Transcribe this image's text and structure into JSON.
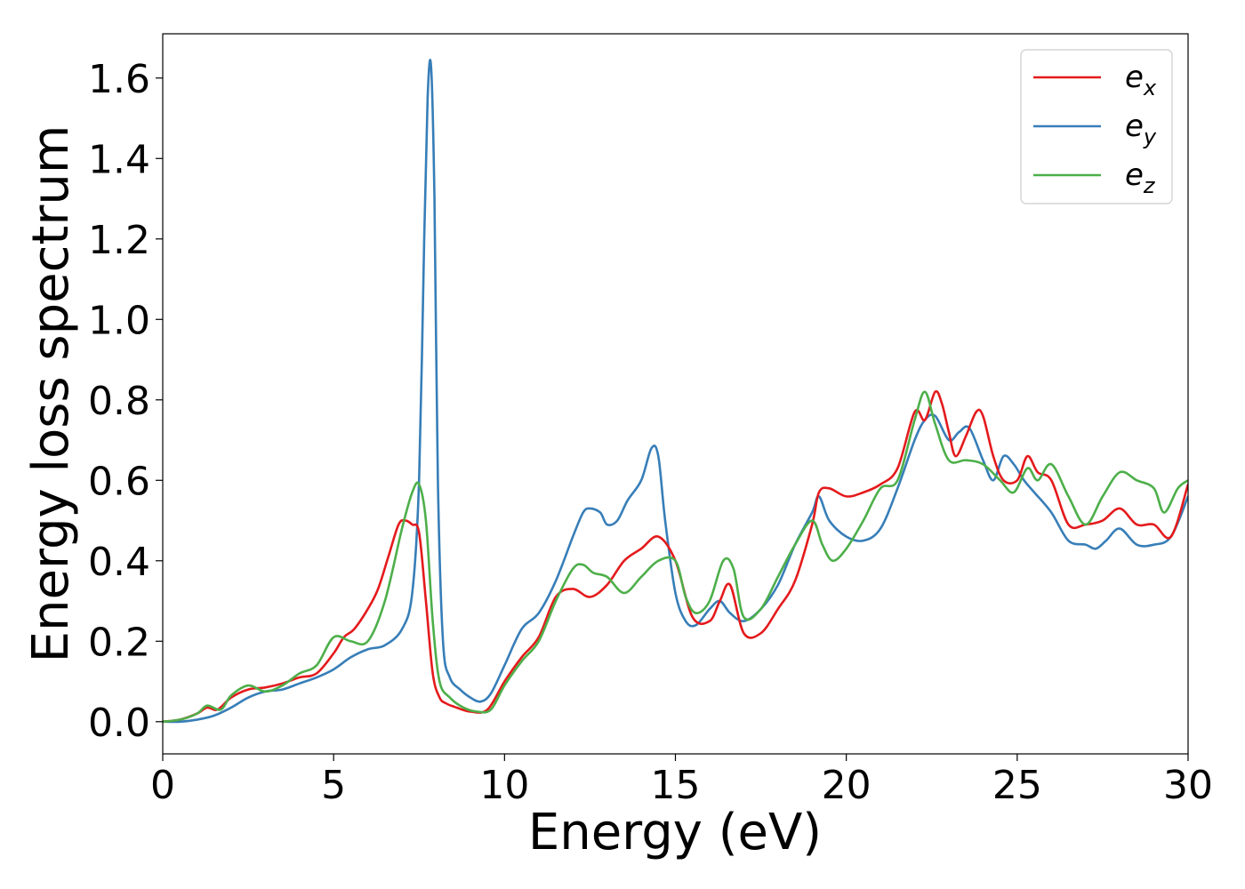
{
  "chart_data": {
    "type": "line",
    "title": "",
    "xlabel": "Energy (eV)",
    "ylabel": "Energy loss spectrum",
    "xlim": [
      0,
      30
    ],
    "ylim": [
      -0.08,
      1.71
    ],
    "xticks": [
      0,
      5,
      10,
      15,
      20,
      25,
      30
    ],
    "xtick_labels": [
      "0",
      "5",
      "10",
      "15",
      "20",
      "25",
      "30"
    ],
    "yticks": [
      0.0,
      0.2,
      0.4,
      0.6,
      0.8,
      1.0,
      1.2,
      1.4,
      1.6
    ],
    "ytick_labels": [
      "0.0",
      "0.2",
      "0.4",
      "0.6",
      "0.8",
      "1.0",
      "1.2",
      "1.4",
      "1.6"
    ],
    "grid": false,
    "legend_position": "top-right",
    "series": [
      {
        "name": "e_x",
        "label_main": "e",
        "label_sub": "x",
        "color": "#e41a1c",
        "x": [
          0,
          0.5,
          1.0,
          1.3,
          1.6,
          2.0,
          2.5,
          3.0,
          3.5,
          4.0,
          4.5,
          5.0,
          5.3,
          5.6,
          6.0,
          6.3,
          6.6,
          6.9,
          7.1,
          7.3,
          7.5,
          7.7,
          7.9,
          8.1,
          8.3,
          8.6,
          9.0,
          9.5,
          10.0,
          10.5,
          11.0,
          11.5,
          12.0,
          12.5,
          13.0,
          13.5,
          14.0,
          14.5,
          15.0,
          15.5,
          16.0,
          16.3,
          16.6,
          17.0,
          17.5,
          18.0,
          18.5,
          19.0,
          19.2,
          19.5,
          20.0,
          20.5,
          21.0,
          21.5,
          22.0,
          22.3,
          22.6,
          22.8,
          23.0,
          23.2,
          23.5,
          23.8,
          24.0,
          24.3,
          24.6,
          25.0,
          25.3,
          25.6,
          26.0,
          26.5,
          27.0,
          27.5,
          28.0,
          28.5,
          29.0,
          29.5,
          30.0
        ],
        "y": [
          0.0,
          0.005,
          0.02,
          0.035,
          0.03,
          0.06,
          0.08,
          0.085,
          0.095,
          0.11,
          0.12,
          0.17,
          0.21,
          0.23,
          0.28,
          0.33,
          0.41,
          0.49,
          0.5,
          0.49,
          0.47,
          0.3,
          0.12,
          0.06,
          0.045,
          0.035,
          0.025,
          0.03,
          0.1,
          0.16,
          0.21,
          0.31,
          0.33,
          0.31,
          0.34,
          0.4,
          0.43,
          0.46,
          0.4,
          0.26,
          0.25,
          0.3,
          0.34,
          0.22,
          0.22,
          0.28,
          0.35,
          0.49,
          0.57,
          0.58,
          0.56,
          0.57,
          0.59,
          0.63,
          0.77,
          0.75,
          0.82,
          0.79,
          0.72,
          0.66,
          0.71,
          0.77,
          0.76,
          0.66,
          0.6,
          0.6,
          0.66,
          0.62,
          0.6,
          0.49,
          0.49,
          0.5,
          0.53,
          0.49,
          0.49,
          0.46,
          0.59
        ]
      },
      {
        "name": "e_y",
        "label_main": "e",
        "label_sub": "y",
        "color": "#377eb8",
        "x": [
          0,
          0.5,
          1.0,
          1.5,
          2.0,
          2.5,
          3.0,
          3.5,
          4.0,
          4.5,
          5.0,
          5.5,
          6.0,
          6.5,
          7.0,
          7.3,
          7.5,
          7.65,
          7.75,
          7.85,
          7.95,
          8.05,
          8.2,
          8.4,
          8.7,
          9.0,
          9.3,
          9.6,
          10.0,
          10.5,
          11.0,
          11.5,
          12.0,
          12.3,
          12.5,
          12.8,
          13.0,
          13.3,
          13.6,
          14.0,
          14.3,
          14.5,
          14.7,
          15.0,
          15.3,
          15.6,
          16.0,
          16.3,
          16.6,
          17.0,
          17.5,
          18.0,
          18.5,
          19.0,
          19.2,
          19.5,
          20.0,
          20.5,
          21.0,
          21.5,
          22.0,
          22.3,
          22.6,
          23.0,
          23.3,
          23.6,
          24.0,
          24.3,
          24.6,
          24.9,
          25.2,
          25.5,
          26.0,
          26.5,
          27.0,
          27.3,
          27.6,
          28.0,
          28.5,
          29.0,
          29.5,
          30.0
        ],
        "y": [
          0.0,
          0.0,
          0.005,
          0.015,
          0.035,
          0.06,
          0.075,
          0.08,
          0.095,
          0.11,
          0.13,
          0.16,
          0.18,
          0.19,
          0.23,
          0.32,
          0.6,
          1.2,
          1.55,
          1.63,
          1.3,
          0.6,
          0.2,
          0.11,
          0.08,
          0.06,
          0.05,
          0.07,
          0.14,
          0.23,
          0.27,
          0.35,
          0.46,
          0.52,
          0.53,
          0.52,
          0.49,
          0.5,
          0.55,
          0.6,
          0.68,
          0.66,
          0.5,
          0.32,
          0.25,
          0.24,
          0.28,
          0.3,
          0.27,
          0.25,
          0.28,
          0.34,
          0.44,
          0.52,
          0.56,
          0.5,
          0.46,
          0.45,
          0.48,
          0.58,
          0.7,
          0.75,
          0.76,
          0.7,
          0.72,
          0.73,
          0.65,
          0.6,
          0.66,
          0.64,
          0.6,
          0.57,
          0.52,
          0.45,
          0.44,
          0.43,
          0.45,
          0.48,
          0.44,
          0.44,
          0.46,
          0.56
        ]
      },
      {
        "name": "e_z",
        "label_main": "e",
        "label_sub": "z",
        "color": "#4daf4a",
        "x": [
          0,
          0.5,
          1.0,
          1.3,
          1.7,
          2.0,
          2.5,
          3.0,
          3.5,
          4.0,
          4.5,
          5.0,
          5.5,
          6.0,
          6.5,
          7.0,
          7.3,
          7.5,
          7.7,
          7.9,
          8.1,
          8.4,
          8.8,
          9.2,
          9.6,
          10.0,
          10.5,
          11.0,
          11.5,
          12.0,
          12.3,
          12.6,
          13.0,
          13.5,
          14.0,
          14.5,
          15.0,
          15.3,
          15.6,
          16.0,
          16.4,
          16.7,
          17.0,
          17.5,
          18.0,
          18.5,
          19.0,
          19.3,
          19.6,
          20.0,
          20.5,
          21.0,
          21.5,
          22.0,
          22.3,
          22.6,
          23.0,
          23.5,
          24.0,
          24.5,
          24.9,
          25.3,
          25.6,
          26.0,
          26.5,
          27.0,
          27.5,
          28.0,
          28.5,
          29.0,
          29.3,
          29.7,
          30.0
        ],
        "y": [
          0.0,
          0.005,
          0.02,
          0.04,
          0.03,
          0.065,
          0.09,
          0.075,
          0.09,
          0.12,
          0.14,
          0.21,
          0.2,
          0.2,
          0.3,
          0.48,
          0.57,
          0.59,
          0.5,
          0.25,
          0.1,
          0.06,
          0.035,
          0.025,
          0.03,
          0.09,
          0.15,
          0.2,
          0.3,
          0.38,
          0.39,
          0.37,
          0.36,
          0.32,
          0.36,
          0.4,
          0.4,
          0.31,
          0.27,
          0.3,
          0.4,
          0.38,
          0.26,
          0.28,
          0.36,
          0.44,
          0.5,
          0.44,
          0.4,
          0.43,
          0.5,
          0.58,
          0.6,
          0.75,
          0.82,
          0.74,
          0.65,
          0.65,
          0.64,
          0.6,
          0.57,
          0.63,
          0.6,
          0.64,
          0.56,
          0.49,
          0.56,
          0.62,
          0.6,
          0.58,
          0.52,
          0.58,
          0.6
        ]
      }
    ]
  }
}
